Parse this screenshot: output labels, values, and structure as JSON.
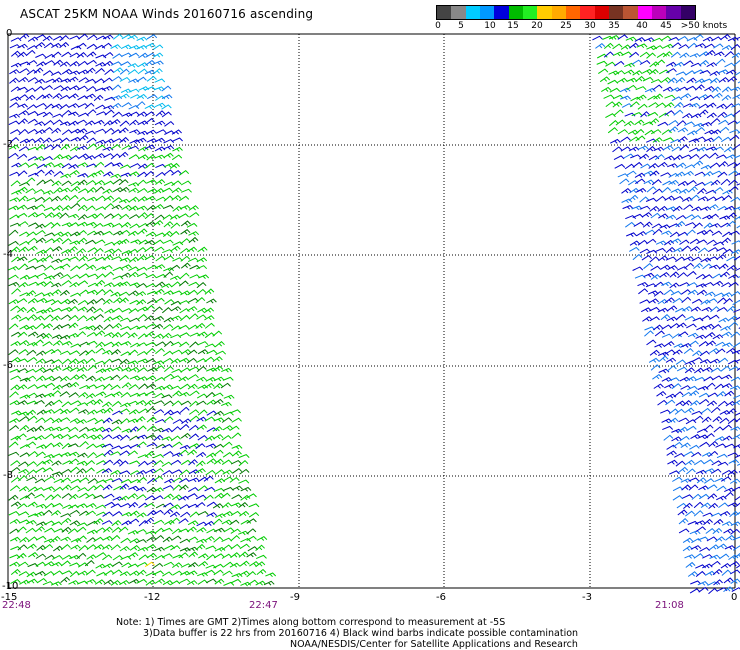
{
  "title": "ASCAT 25KM NOAA Winds 20160716 ascending",
  "legend": {
    "labels": [
      "0",
      "5",
      "10",
      "15",
      "20",
      "25",
      "30",
      "35",
      "40",
      "45",
      ">50 knots"
    ],
    "colors": [
      "#444444",
      "#888888",
      "#00ccff",
      "#0099ff",
      "#0000dd",
      "#00bb00",
      "#22ee22",
      "#ffcc00",
      "#ffaa00",
      "#ff6600",
      "#ff2222",
      "#dd0000",
      "#773322",
      "#bb5533",
      "#ff00ff",
      "#bb00bb",
      "#6600aa",
      "#330066"
    ]
  },
  "axes": {
    "y_labels": [
      "0",
      "-2",
      "-4",
      "-6",
      "-8",
      "-10"
    ],
    "x_labels": [
      "-15",
      "-12",
      "-9",
      "-6",
      "-3",
      "0"
    ]
  },
  "times": {
    "left": "22:48",
    "middle": "22:47",
    "right": "21:08"
  },
  "notes": {
    "line1": "Note: 1) Times are GMT 2)Times along bottom correspond to measurement at -5S",
    "line2": "3)Data buffer is 22 hrs from 20160716 4) Black wind barbs indicate possible contamination",
    "line3": "NOAA/NESDIS/Center for Satellite Applications and Research"
  },
  "barb_colors": {
    "blue": "#0000cc",
    "light_blue": "#1177ee",
    "cyan": "#00bbee",
    "green": "#00cc00",
    "dark_green": "#007700",
    "yellow": "#ffdd00"
  }
}
